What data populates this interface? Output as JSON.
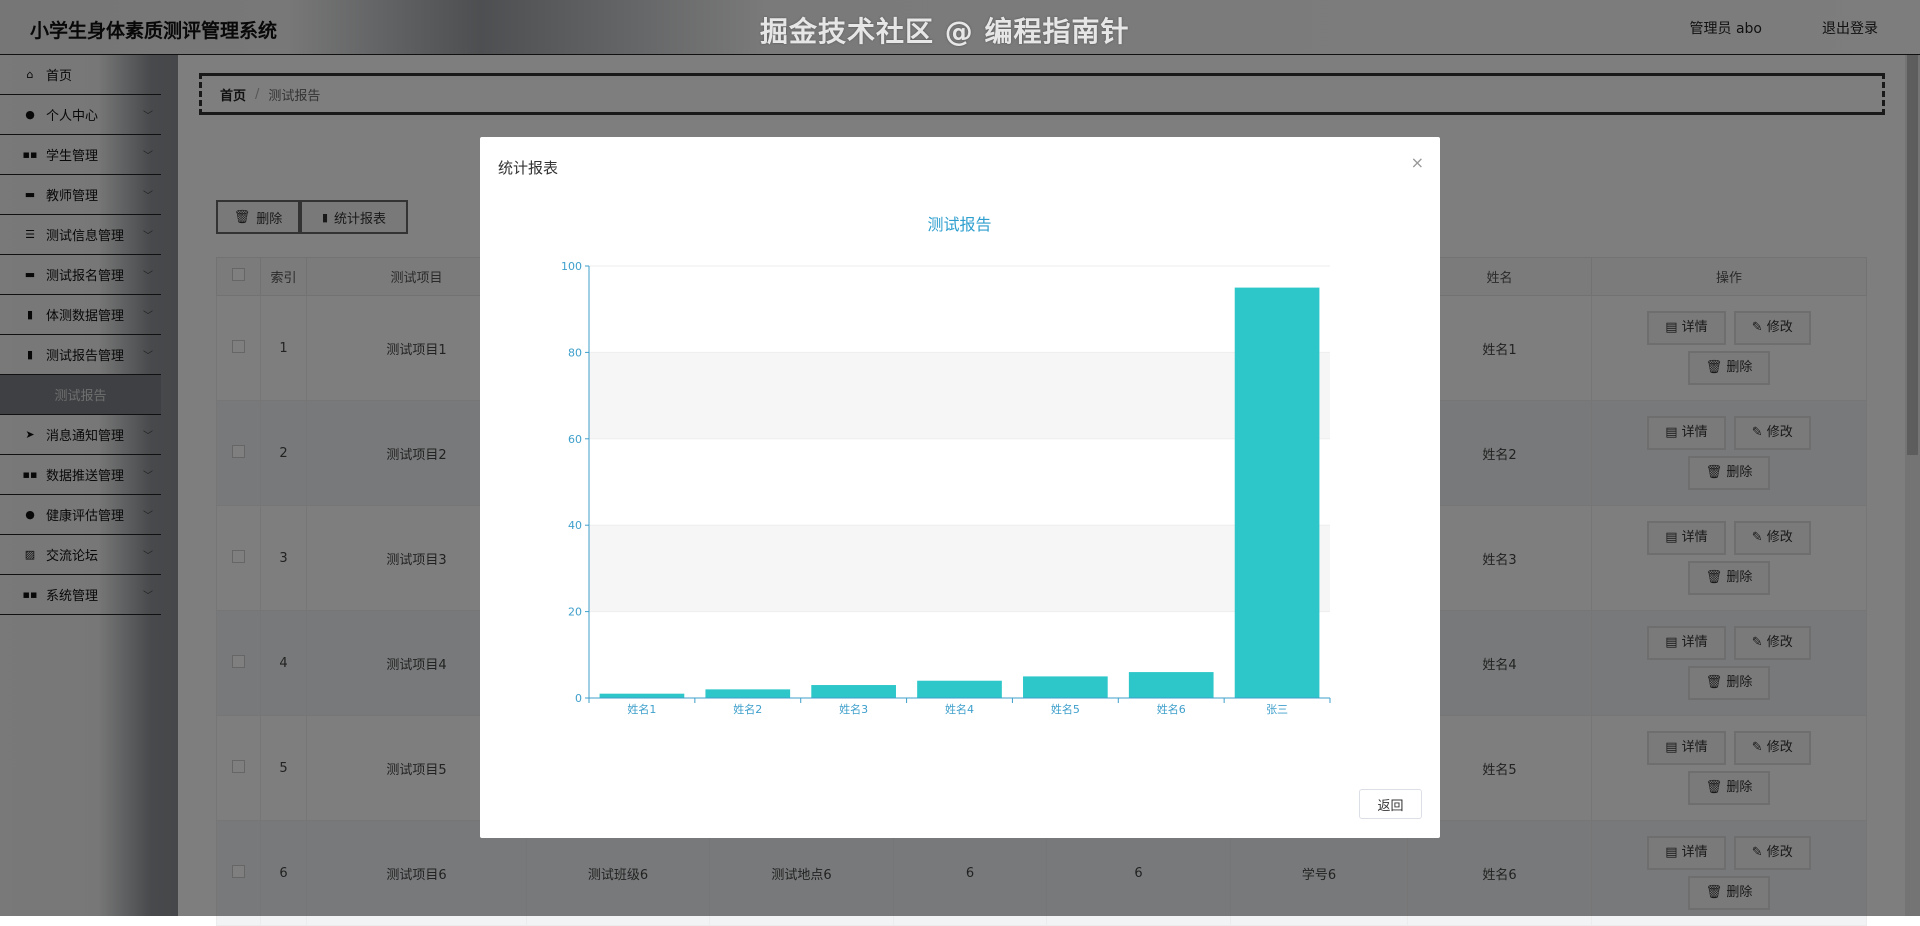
{
  "header": {
    "title": "小学生身体素质测评管理系统",
    "user": "管理员 abo",
    "logout": "退出登录"
  },
  "sidebar": {
    "items": [
      {
        "label": "首页",
        "icon": "home-icon",
        "glyph": "⌂",
        "chevron": false
      },
      {
        "label": "个人中心",
        "icon": "user-icon",
        "glyph": "●",
        "chevron": true
      },
      {
        "label": "学生管理",
        "icon": "grid-icon",
        "glyph": "▪▪",
        "chevron": true
      },
      {
        "label": "教师管理",
        "icon": "monitor-icon",
        "glyph": "▬",
        "chevron": true
      },
      {
        "label": "测试信息管理",
        "icon": "list-icon",
        "glyph": "☰",
        "chevron": true
      },
      {
        "label": "测试报名管理",
        "icon": "monitor-icon",
        "glyph": "▬",
        "chevron": true
      },
      {
        "label": "体测数据管理",
        "icon": "clipboard-icon",
        "glyph": "▮",
        "chevron": true
      },
      {
        "label": "测试报告管理",
        "icon": "clipboard-icon",
        "glyph": "▮",
        "chevron": true
      },
      {
        "label": "测试报告",
        "sub": true
      },
      {
        "label": "消息通知管理",
        "icon": "send-icon",
        "glyph": "➤",
        "chevron": true
      },
      {
        "label": "数据推送管理",
        "icon": "grid-icon",
        "glyph": "▪▪",
        "chevron": true
      },
      {
        "label": "健康评估管理",
        "icon": "user-icon",
        "glyph": "●",
        "chevron": true
      },
      {
        "label": "交流论坛",
        "icon": "chart-icon",
        "glyph": "▨",
        "chevron": true
      },
      {
        "label": "系统管理",
        "icon": "grid-icon",
        "glyph": "▪▪",
        "chevron": true
      }
    ]
  },
  "breadcrumb": {
    "home": "首页",
    "separator": "/",
    "current": "测试报告"
  },
  "toolbar": {
    "delete": "删除",
    "report": "统计报表"
  },
  "table": {
    "headers": [
      "",
      "索引",
      "测试项目",
      "",
      "",
      "",
      "",
      "",
      "姓名",
      "操作"
    ],
    "rows": [
      [
        "",
        "1",
        "测试项目1",
        "",
        "",
        "",
        "",
        "",
        "姓名1"
      ],
      [
        "",
        "2",
        "测试项目2",
        "",
        "",
        "",
        "",
        "",
        "姓名2"
      ],
      [
        "",
        "3",
        "测试项目3",
        "",
        "",
        "",
        "",
        "",
        "姓名3"
      ],
      [
        "",
        "4",
        "测试项目4",
        "",
        "",
        "",
        "",
        "",
        "姓名4"
      ],
      [
        "",
        "5",
        "测试项目5",
        "",
        "",
        "",
        "",
        "",
        "姓名5"
      ],
      [
        "",
        "6",
        "测试项目6",
        "测试班级6",
        "测试地点6",
        "6",
        "6",
        "学号6",
        "姓名6"
      ]
    ],
    "actions": {
      "detail": "详情",
      "edit": "修改",
      "delete": "删除"
    }
  },
  "modal": {
    "title": "统计报表",
    "close": "×",
    "return": "返回"
  },
  "chart_data": {
    "type": "bar",
    "title": "测试报告",
    "categories": [
      "姓名1",
      "姓名2",
      "姓名3",
      "姓名4",
      "姓名5",
      "姓名6",
      "张三"
    ],
    "values": [
      1,
      2,
      3,
      4,
      5,
      6,
      95
    ],
    "yticks": [
      "0",
      "20",
      "40",
      "60",
      "80",
      "100"
    ],
    "ylim": [
      0,
      100
    ],
    "xlabel": "",
    "ylabel": "",
    "grid": true,
    "colors": {
      "bar": "#2ec7c9",
      "axis": "#3e9fcb",
      "title": "#2e9fcf"
    }
  },
  "watermark": "掘金技术社区 @ 编程指南针"
}
